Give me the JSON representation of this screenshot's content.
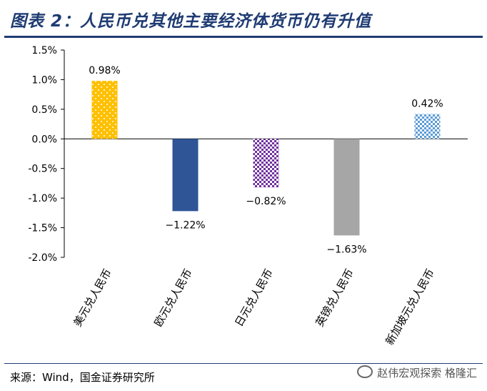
{
  "header": {
    "title": "图表 2：人民币兑其他主要经济体货币仍有升值"
  },
  "footer": {
    "source": "来源：Wind，国金证券研究所",
    "watermark": "赵伟宏观探索 格隆汇"
  },
  "chart_data": {
    "type": "bar",
    "title": "",
    "xlabel": "",
    "ylabel": "",
    "categories": [
      "美元兑人民币",
      "欧元兑人民币",
      "日元兑人民币",
      "英镑兑人民币",
      "新加坡元兑人民币"
    ],
    "values": [
      0.98,
      -1.22,
      -0.82,
      -1.63,
      0.42
    ],
    "value_labels": [
      "0.98%",
      "−1.22%",
      "−0.82%",
      "−1.63%",
      "0.42%"
    ],
    "ylim": [
      -2.0,
      1.5
    ],
    "yticks": [
      1.5,
      1.0,
      0.5,
      0.0,
      -0.5,
      -1.0,
      -1.5,
      -2.0
    ],
    "ytick_labels": [
      "1.5%",
      "1.0%",
      "0.5%",
      "0.0%",
      "-0.5%",
      "-1.0%",
      "-1.5%",
      "-2.0%"
    ],
    "colors": [
      "#ffc000",
      "#2f5597",
      "#7030a0",
      "#a6a6a6",
      "#5b9bd5"
    ],
    "grid": false,
    "legend": "none"
  }
}
